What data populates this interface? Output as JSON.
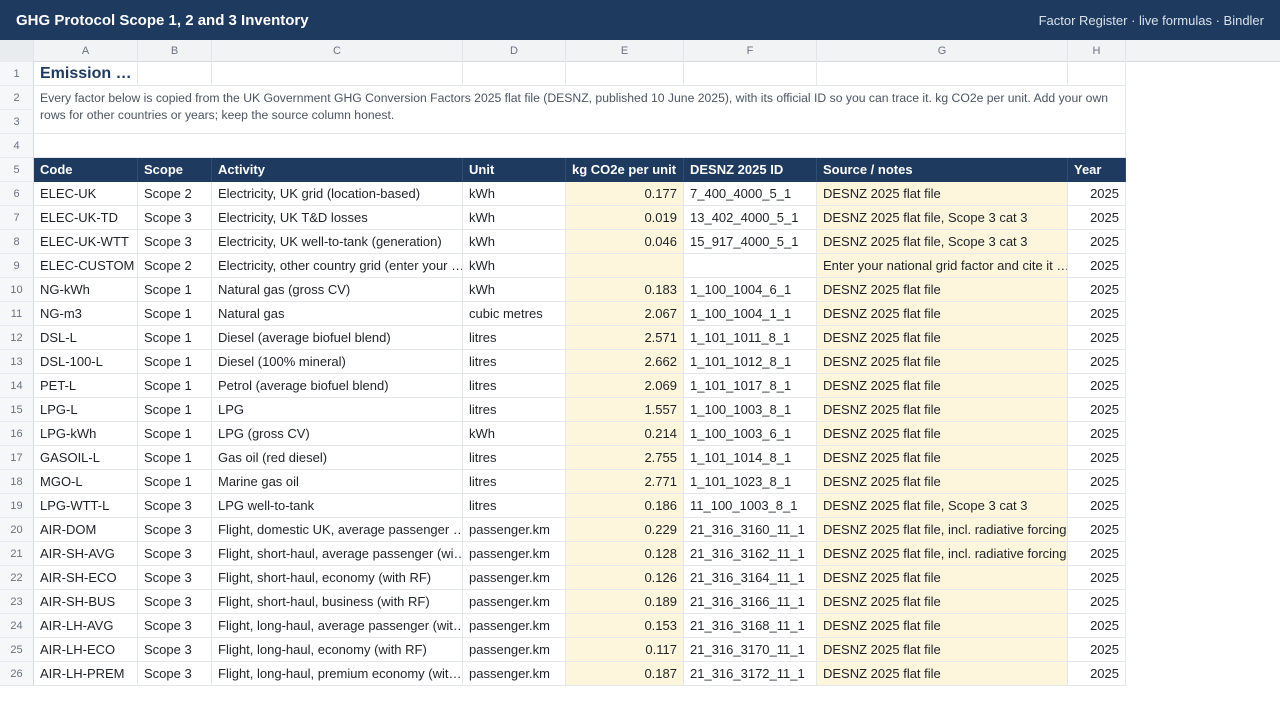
{
  "app": {
    "title": "GHG Protocol Scope 1, 2 and 3 Inventory",
    "subtitle": "Factor Register · live formulas · Bindler"
  },
  "columns": [
    "A",
    "B",
    "C",
    "D",
    "E",
    "F",
    "G",
    "H"
  ],
  "row_numbers": [
    "1",
    "2",
    "3",
    "4",
    "5",
    "6",
    "7",
    "8",
    "9",
    "10",
    "11",
    "12",
    "13",
    "14",
    "15",
    "16",
    "17",
    "18",
    "19",
    "20",
    "21",
    "22",
    "23",
    "24",
    "25",
    "26"
  ],
  "sheet": {
    "title": "Emission …",
    "intro": "Every factor below is copied from the UK Government GHG Conversion Factors 2025 flat file (DESNZ, published 10 June 2025), with its official ID so you can trace it. kg CO2e per unit. Add your own rows for other countries or years; keep the source column honest.",
    "headers": [
      "Code",
      "Scope",
      "Activity",
      "Unit",
      "kg CO2e per unit",
      "DESNZ 2025 ID",
      "Source / notes",
      "Year"
    ],
    "rows": [
      {
        "code": "ELEC-UK",
        "scope": "Scope 2",
        "activity": "Electricity, UK grid (location-based)",
        "unit": "kWh",
        "factor": "0.177",
        "id": "7_400_4000_5_1",
        "notes": "DESNZ 2025 flat file",
        "year": "2025"
      },
      {
        "code": "ELEC-UK-TD",
        "scope": "Scope 3",
        "activity": "Electricity, UK T&D losses",
        "unit": "kWh",
        "factor": "0.019",
        "id": "13_402_4000_5_1",
        "notes": "DESNZ 2025 flat file, Scope 3 cat 3",
        "year": "2025"
      },
      {
        "code": "ELEC-UK-WTT",
        "scope": "Scope 3",
        "activity": "Electricity, UK well-to-tank (generation)",
        "unit": "kWh",
        "factor": "0.046",
        "id": "15_917_4000_5_1",
        "notes": "DESNZ 2025 flat file, Scope 3 cat 3",
        "year": "2025"
      },
      {
        "code": "ELEC-CUSTOM",
        "scope": "Scope 2",
        "activity": "Electricity, other country grid (enter your …",
        "unit": "kWh",
        "factor": "",
        "id": "",
        "notes": "Enter your national grid factor and cite it …",
        "year": "2025"
      },
      {
        "code": "NG-kWh",
        "scope": "Scope 1",
        "activity": "Natural gas (gross CV)",
        "unit": "kWh",
        "factor": "0.183",
        "id": "1_100_1004_6_1",
        "notes": "DESNZ 2025 flat file",
        "year": "2025"
      },
      {
        "code": "NG-m3",
        "scope": "Scope 1",
        "activity": "Natural gas",
        "unit": "cubic metres",
        "factor": "2.067",
        "id": "1_100_1004_1_1",
        "notes": "DESNZ 2025 flat file",
        "year": "2025"
      },
      {
        "code": "DSL-L",
        "scope": "Scope 1",
        "activity": "Diesel (average biofuel blend)",
        "unit": "litres",
        "factor": "2.571",
        "id": "1_101_1011_8_1",
        "notes": "DESNZ 2025 flat file",
        "year": "2025"
      },
      {
        "code": "DSL-100-L",
        "scope": "Scope 1",
        "activity": "Diesel (100% mineral)",
        "unit": "litres",
        "factor": "2.662",
        "id": "1_101_1012_8_1",
        "notes": "DESNZ 2025 flat file",
        "year": "2025"
      },
      {
        "code": "PET-L",
        "scope": "Scope 1",
        "activity": "Petrol (average biofuel blend)",
        "unit": "litres",
        "factor": "2.069",
        "id": "1_101_1017_8_1",
        "notes": "DESNZ 2025 flat file",
        "year": "2025"
      },
      {
        "code": "LPG-L",
        "scope": "Scope 1",
        "activity": "LPG",
        "unit": "litres",
        "factor": "1.557",
        "id": "1_100_1003_8_1",
        "notes": "DESNZ 2025 flat file",
        "year": "2025"
      },
      {
        "code": "LPG-kWh",
        "scope": "Scope 1",
        "activity": "LPG (gross CV)",
        "unit": "kWh",
        "factor": "0.214",
        "id": "1_100_1003_6_1",
        "notes": "DESNZ 2025 flat file",
        "year": "2025"
      },
      {
        "code": "GASOIL-L",
        "scope": "Scope 1",
        "activity": "Gas oil (red diesel)",
        "unit": "litres",
        "factor": "2.755",
        "id": "1_101_1014_8_1",
        "notes": "DESNZ 2025 flat file",
        "year": "2025"
      },
      {
        "code": "MGO-L",
        "scope": "Scope 1",
        "activity": "Marine gas oil",
        "unit": "litres",
        "factor": "2.771",
        "id": "1_101_1023_8_1",
        "notes": "DESNZ 2025 flat file",
        "year": "2025"
      },
      {
        "code": "LPG-WTT-L",
        "scope": "Scope 3",
        "activity": "LPG well-to-tank",
        "unit": "litres",
        "factor": "0.186",
        "id": "11_100_1003_8_1",
        "notes": "DESNZ 2025 flat file, Scope 3 cat 3",
        "year": "2025"
      },
      {
        "code": "AIR-DOM",
        "scope": "Scope 3",
        "activity": "Flight, domestic UK, average passenger …",
        "unit": "passenger.km",
        "factor": "0.229",
        "id": "21_316_3160_11_1",
        "notes": "DESNZ 2025 flat file, incl. radiative forcing",
        "year": "2025"
      },
      {
        "code": "AIR-SH-AVG",
        "scope": "Scope 3",
        "activity": "Flight, short-haul, average passenger (wi…",
        "unit": "passenger.km",
        "factor": "0.128",
        "id": "21_316_3162_11_1",
        "notes": "DESNZ 2025 flat file, incl. radiative forcing",
        "year": "2025"
      },
      {
        "code": "AIR-SH-ECO",
        "scope": "Scope 3",
        "activity": "Flight, short-haul, economy (with RF)",
        "unit": "passenger.km",
        "factor": "0.126",
        "id": "21_316_3164_11_1",
        "notes": "DESNZ 2025 flat file",
        "year": "2025"
      },
      {
        "code": "AIR-SH-BUS",
        "scope": "Scope 3",
        "activity": "Flight, short-haul, business (with RF)",
        "unit": "passenger.km",
        "factor": "0.189",
        "id": "21_316_3166_11_1",
        "notes": "DESNZ 2025 flat file",
        "year": "2025"
      },
      {
        "code": "AIR-LH-AVG",
        "scope": "Scope 3",
        "activity": "Flight, long-haul, average passenger (wit…",
        "unit": "passenger.km",
        "factor": "0.153",
        "id": "21_316_3168_11_1",
        "notes": "DESNZ 2025 flat file",
        "year": "2025"
      },
      {
        "code": "AIR-LH-ECO",
        "scope": "Scope 3",
        "activity": "Flight, long-haul, economy (with RF)",
        "unit": "passenger.km",
        "factor": "0.117",
        "id": "21_316_3170_11_1",
        "notes": "DESNZ 2025 flat file",
        "year": "2025"
      },
      {
        "code": "AIR-LH-PREM",
        "scope": "Scope 3",
        "activity": "Flight, long-haul, premium economy (wit…",
        "unit": "passenger.km",
        "factor": "0.187",
        "id": "21_316_3172_11_1",
        "notes": "DESNZ 2025 flat file",
        "year": "2025"
      }
    ]
  }
}
